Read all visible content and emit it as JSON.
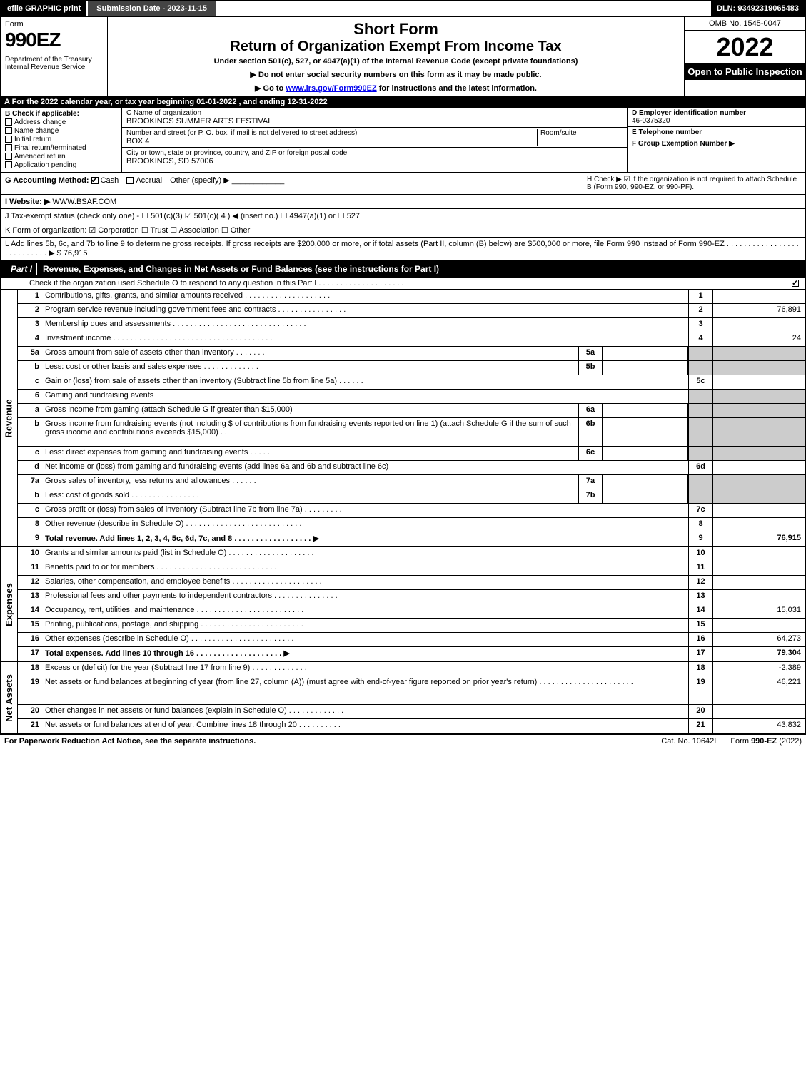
{
  "topbar": {
    "efile": "efile GRAPHIC print",
    "subdate": "Submission Date - 2023-11-15",
    "dln": "DLN: 93492319065483"
  },
  "header": {
    "form_word": "Form",
    "form_num": "990EZ",
    "dept": "Department of the Treasury\nInternal Revenue Service",
    "title1": "Short Form",
    "title2": "Return of Organization Exempt From Income Tax",
    "sub": "Under section 501(c), 527, or 4947(a)(1) of the Internal Revenue Code (except private foundations)",
    "note1": "▶ Do not enter social security numbers on this form as it may be made public.",
    "note2_pre": "▶ Go to ",
    "note2_link": "www.irs.gov/Form990EZ",
    "note2_post": " for instructions and the latest information.",
    "omb": "OMB No. 1545-0047",
    "year": "2022",
    "inspect": "Open to Public Inspection"
  },
  "row_a": "A  For the 2022 calendar year, or tax year beginning 01-01-2022 , and ending 12-31-2022",
  "col_b": {
    "label": "B  Check if applicable:",
    "items": [
      "Address change",
      "Name change",
      "Initial return",
      "Final return/terminated",
      "Amended return",
      "Application pending"
    ]
  },
  "col_c": {
    "name_lbl": "C Name of organization",
    "name_val": "BROOKINGS SUMMER ARTS FESTIVAL",
    "street_lbl": "Number and street (or P. O. box, if mail is not delivered to street address)",
    "street_val": "BOX 4",
    "room_lbl": "Room/suite",
    "city_lbl": "City or town, state or province, country, and ZIP or foreign postal code",
    "city_val": "BROOKINGS, SD  57006"
  },
  "col_def": {
    "d_lbl": "D Employer identification number",
    "d_val": "46-0375320",
    "e_lbl": "E Telephone number",
    "e_val": "",
    "f_lbl": "F Group Exemption Number  ▶",
    "f_val": ""
  },
  "row_g": {
    "label": "G Accounting Method:",
    "cash": "Cash",
    "accrual": "Accrual",
    "other": "Other (specify) ▶"
  },
  "row_h": "H  Check ▶ ☑ if the organization is not required to attach Schedule B (Form 990, 990-EZ, or 990-PF).",
  "row_i": {
    "label": "I Website: ▶",
    "val": "WWW.BSAF.COM"
  },
  "row_j": "J Tax-exempt status (check only one) - ☐ 501(c)(3)  ☑ 501(c)( 4 ) ◀ (insert no.)  ☐ 4947(a)(1) or  ☐ 527",
  "row_k": "K Form of organization:  ☑ Corporation  ☐ Trust  ☐ Association  ☐ Other",
  "row_l": "L Add lines 5b, 6c, and 7b to line 9 to determine gross receipts. If gross receipts are $200,000 or more, or if total assets (Part II, column (B) below) are $500,000 or more, file Form 990 instead of Form 990-EZ  . . . . . . . . . . . . . . . . . . . . . . . . . . .  ▶ $ 76,915",
  "part1": {
    "label": "Part I",
    "title": "Revenue, Expenses, and Changes in Net Assets or Fund Balances (see the instructions for Part I)",
    "sub": "Check if the organization used Schedule O to respond to any question in this Part I . . . . . . . . . . . . . . . . . . . .",
    "sub_checked": true
  },
  "revenue_lines": [
    {
      "n": "1",
      "t": "Contributions, gifts, grants, and similar amounts received . . . . . . . . . . . . . . . . . . . .",
      "c": "1",
      "v": ""
    },
    {
      "n": "2",
      "t": "Program service revenue including government fees and contracts . . . . . . . . . . . . . . . .",
      "c": "2",
      "v": "76,891"
    },
    {
      "n": "3",
      "t": "Membership dues and assessments . . . . . . . . . . . . . . . . . . . . . . . . . . . . . . .",
      "c": "3",
      "v": ""
    },
    {
      "n": "4",
      "t": "Investment income . . . . . . . . . . . . . . . . . . . . . . . . . . . . . . . . . . . . .",
      "c": "4",
      "v": "24"
    },
    {
      "n": "5a",
      "t": "Gross amount from sale of assets other than inventory . . . . . . .",
      "m": "5a",
      "mv": "",
      "shaded": true
    },
    {
      "n": "b",
      "t": "Less: cost or other basis and sales expenses . . . . . . . . . . . . .",
      "m": "5b",
      "mv": "",
      "shaded": true
    },
    {
      "n": "c",
      "t": "Gain or (loss) from sale of assets other than inventory (Subtract line 5b from line 5a) . . . . . .",
      "c": "5c",
      "v": ""
    },
    {
      "n": "6",
      "t": "Gaming and fundraising events",
      "noval": true,
      "shaded": true
    },
    {
      "n": "a",
      "t": "Gross income from gaming (attach Schedule G if greater than $15,000)",
      "m": "6a",
      "mv": "",
      "shaded": true
    },
    {
      "n": "b",
      "t": "Gross income from fundraising events (not including $                     of contributions from fundraising events reported on line 1) (attach Schedule G if the sum of such gross income and contributions exceeds $15,000)  .  .",
      "m": "6b",
      "mv": "",
      "shaded": true,
      "tall": true
    },
    {
      "n": "c",
      "t": "Less: direct expenses from gaming and fundraising events  . . . . .",
      "m": "6c",
      "mv": "",
      "shaded": true
    },
    {
      "n": "d",
      "t": "Net income or (loss) from gaming and fundraising events (add lines 6a and 6b and subtract line 6c)",
      "c": "6d",
      "v": ""
    },
    {
      "n": "7a",
      "t": "Gross sales of inventory, less returns and allowances . . . . . .",
      "m": "7a",
      "mv": "",
      "shaded": true
    },
    {
      "n": "b",
      "t": "Less: cost of goods sold       . . . . . . . . . . . . . . . .",
      "m": "7b",
      "mv": "",
      "shaded": true
    },
    {
      "n": "c",
      "t": "Gross profit or (loss) from sales of inventory (Subtract line 7b from line 7a) . . . . . . . . .",
      "c": "7c",
      "v": ""
    },
    {
      "n": "8",
      "t": "Other revenue (describe in Schedule O) . . . . . . . . . . . . . . . . . . . . . . . . . . .",
      "c": "8",
      "v": ""
    },
    {
      "n": "9",
      "t": "Total revenue. Add lines 1, 2, 3, 4, 5c, 6d, 7c, and 8  . . . . . . . . . . . . . . . . . .  ▶",
      "c": "9",
      "v": "76,915",
      "bold": true
    }
  ],
  "expense_lines": [
    {
      "n": "10",
      "t": "Grants and similar amounts paid (list in Schedule O) . . . . . . . . . . . . . . . . . . . .",
      "c": "10",
      "v": ""
    },
    {
      "n": "11",
      "t": "Benefits paid to or for members    . . . . . . . . . . . . . . . . . . . . . . . . . . . .",
      "c": "11",
      "v": ""
    },
    {
      "n": "12",
      "t": "Salaries, other compensation, and employee benefits . . . . . . . . . . . . . . . . . . . . .",
      "c": "12",
      "v": ""
    },
    {
      "n": "13",
      "t": "Professional fees and other payments to independent contractors . . . . . . . . . . . . . . .",
      "c": "13",
      "v": ""
    },
    {
      "n": "14",
      "t": "Occupancy, rent, utilities, and maintenance . . . . . . . . . . . . . . . . . . . . . . . . .",
      "c": "14",
      "v": "15,031"
    },
    {
      "n": "15",
      "t": "Printing, publications, postage, and shipping . . . . . . . . . . . . . . . . . . . . . . . .",
      "c": "15",
      "v": ""
    },
    {
      "n": "16",
      "t": "Other expenses (describe in Schedule O)    . . . . . . . . . . . . . . . . . . . . . . . .",
      "c": "16",
      "v": "64,273"
    },
    {
      "n": "17",
      "t": "Total expenses. Add lines 10 through 16     . . . . . . . . . . . . . . . . . . . .  ▶",
      "c": "17",
      "v": "79,304",
      "bold": true
    }
  ],
  "netasset_lines": [
    {
      "n": "18",
      "t": "Excess or (deficit) for the year (Subtract line 17 from line 9)      . . . . . . . . . . . . .",
      "c": "18",
      "v": "-2,389"
    },
    {
      "n": "19",
      "t": "Net assets or fund balances at beginning of year (from line 27, column (A)) (must agree with end-of-year figure reported on prior year's return) . . . . . . . . . . . . . . . . . . . . . .",
      "c": "19",
      "v": "46,221",
      "tall": true
    },
    {
      "n": "20",
      "t": "Other changes in net assets or fund balances (explain in Schedule O) . . . . . . . . . . . . .",
      "c": "20",
      "v": ""
    },
    {
      "n": "21",
      "t": "Net assets or fund balances at end of year. Combine lines 18 through 20 . . . . . . . . . .",
      "c": "21",
      "v": "43,832"
    }
  ],
  "footer": {
    "left": "For Paperwork Reduction Act Notice, see the separate instructions.",
    "mid": "Cat. No. 10642I",
    "right": "Form 990-EZ (2022)"
  },
  "colors": {
    "black": "#000000",
    "white": "#ffffff",
    "shade": "#cccccc",
    "darkgray": "#444444"
  }
}
